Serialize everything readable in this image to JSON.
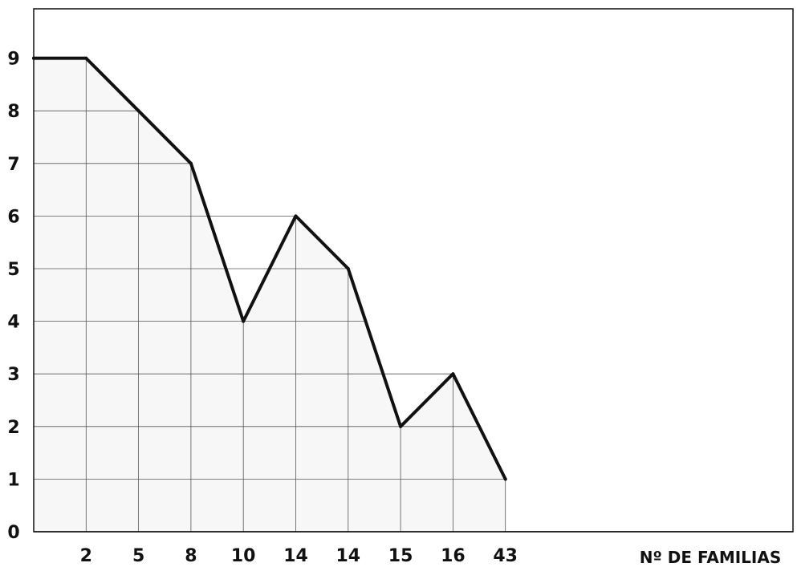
{
  "chart_data": {
    "type": "line",
    "title": "",
    "xlabel": "Nº DE FAMILIAS",
    "ylabel": "",
    "categories": [
      "",
      "2",
      "5",
      "8",
      "10",
      "14",
      "14",
      "15",
      "16",
      "43"
    ],
    "values": [
      9,
      9,
      8,
      7,
      4,
      6,
      5,
      2,
      3,
      1
    ],
    "yticks": [
      "0",
      "1",
      "2",
      "3",
      "4",
      "5",
      "6",
      "7",
      "8",
      "9"
    ],
    "ylim": [
      0,
      10
    ],
    "grid": true,
    "legend": "none",
    "colors": {
      "line": "#111111",
      "grid": "#555555",
      "fill": "#f7f7f7",
      "frame": "#111111"
    }
  }
}
